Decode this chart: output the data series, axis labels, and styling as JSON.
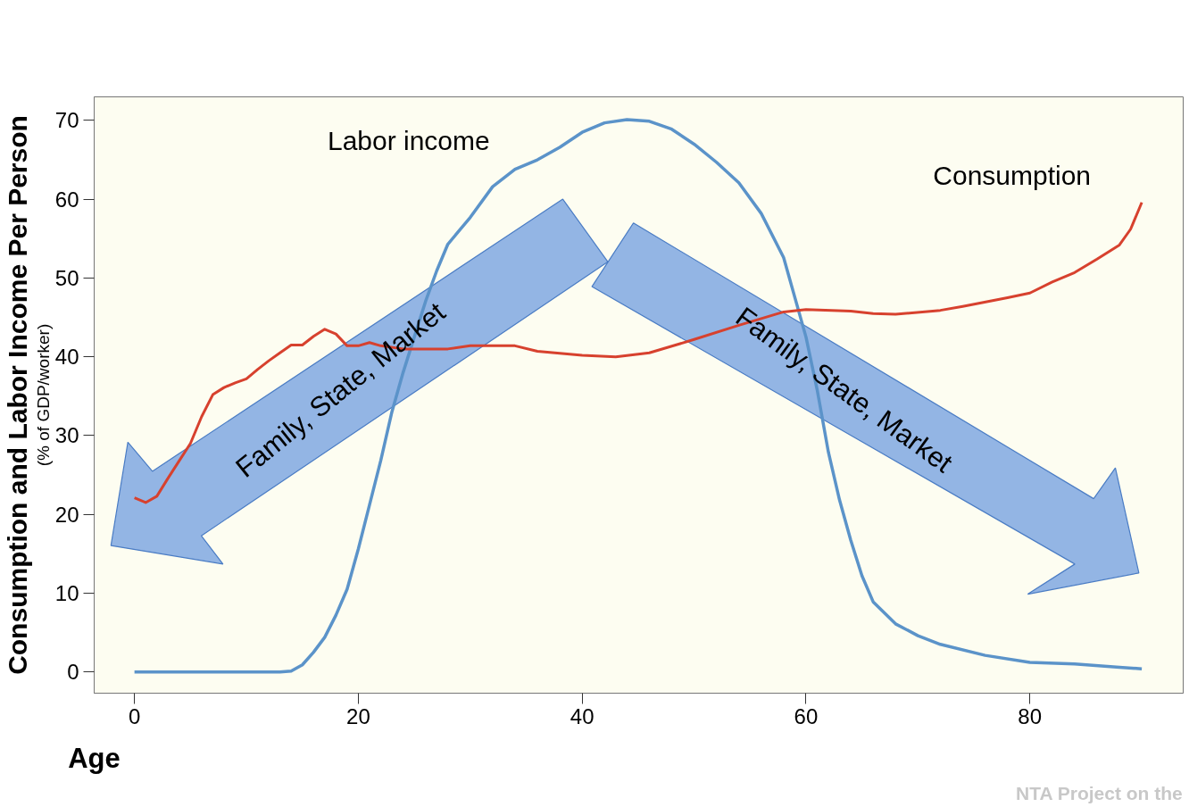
{
  "chart_data": {
    "type": "line",
    "xlabel": "Age",
    "ylabel": "Consumption and Labor Income Per Person",
    "xlim": [
      -3.6,
      93.7
    ],
    "ylim": [
      -2.7,
      73
    ],
    "xticks": [
      0,
      20,
      40,
      60,
      80
    ],
    "yticks": [
      0,
      10,
      20,
      30,
      40,
      50,
      60,
      70
    ],
    "grid": false,
    "legend": false,
    "marker": "none",
    "line_style": "solid",
    "series": [
      {
        "name": "Labor income",
        "color": "#5b93c9",
        "x": [
          0,
          13,
          14,
          15,
          16,
          17,
          18,
          19,
          20,
          21,
          22,
          23,
          24,
          25,
          26,
          27,
          28,
          30,
          32,
          34,
          36,
          38,
          40,
          42,
          44,
          46,
          48,
          50,
          52,
          54,
          56,
          58,
          60,
          61,
          62,
          63,
          64,
          65,
          66,
          68,
          70,
          72,
          76,
          80,
          84,
          88,
          90
        ],
        "values": [
          0,
          0,
          0.1,
          0.9,
          2.5,
          4.4,
          7.2,
          10.5,
          15.6,
          21.2,
          26.8,
          33,
          38,
          42.5,
          47,
          50.9,
          54.3,
          57.7,
          61.6,
          63.8,
          65,
          66.6,
          68.5,
          69.7,
          70.1,
          69.9,
          68.9,
          67,
          64.7,
          62.1,
          58.2,
          52.6,
          42.5,
          35.8,
          27.9,
          21.8,
          16.7,
          12.2,
          8.9,
          6.1,
          4.6,
          3.5,
          2.1,
          1.2,
          1,
          0.6,
          0.4
        ]
      },
      {
        "name": "Consumption",
        "color": "#d7412e",
        "x": [
          0,
          1,
          2,
          3,
          4,
          5,
          6,
          7,
          8,
          9,
          10,
          11,
          12,
          13,
          14,
          15,
          16,
          17,
          18,
          19,
          20,
          21,
          22,
          24,
          26,
          28,
          30,
          34,
          36,
          40,
          43,
          46,
          50,
          54,
          58,
          60,
          64,
          66,
          68,
          72,
          74,
          78,
          80,
          82,
          84,
          86,
          88,
          89,
          90
        ],
        "values": [
          22.1,
          21.5,
          22.3,
          24.6,
          26.8,
          29,
          32.4,
          35.2,
          36.1,
          36.7,
          37.2,
          38.4,
          39.5,
          40.5,
          41.5,
          41.5,
          42.6,
          43.5,
          42.9,
          41.4,
          41.4,
          41.8,
          41.4,
          41,
          41,
          41,
          41.4,
          41.4,
          40.7,
          40.2,
          40,
          40.5,
          42.2,
          44,
          45.7,
          46,
          45.8,
          45.5,
          45.4,
          45.9,
          46.4,
          47.5,
          48.1,
          49.5,
          50.7,
          52.4,
          54.2,
          56.2,
          59.6
        ]
      }
    ],
    "annotations": [
      "Family, State, Market",
      "Family, State, Market",
      "NTA Project on the",
      "(% of GDP/worker)"
    ]
  }
}
